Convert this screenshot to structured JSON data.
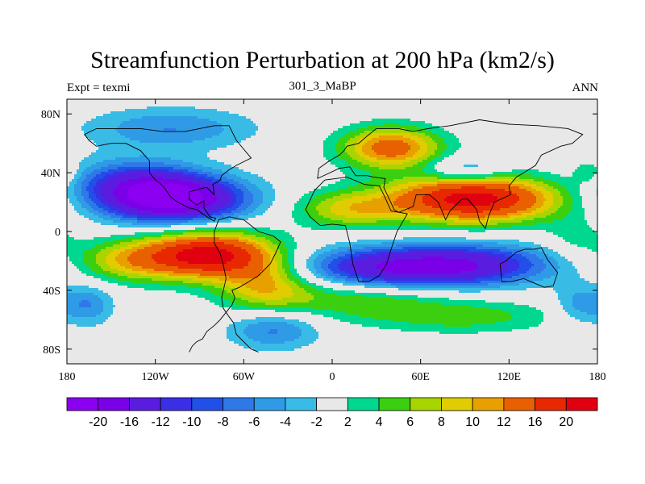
{
  "chart_data": {
    "type": "heatmap",
    "title": "Streamfunction Perturbation at 200 hPa (km2/s)",
    "left_subtitle": "Expt = texmi",
    "center_subtitle": "301_3_MaBP",
    "right_subtitle": "ANN",
    "x_range": [
      -180,
      180
    ],
    "y_range": [
      -90,
      90
    ],
    "x_ticks": [
      {
        "value": -180,
        "label": "180"
      },
      {
        "value": -120,
        "label": "120W"
      },
      {
        "value": -60,
        "label": "60W"
      },
      {
        "value": 0,
        "label": "0"
      },
      {
        "value": 60,
        "label": "60E"
      },
      {
        "value": 120,
        "label": "120E"
      },
      {
        "value": 180,
        "label": "180"
      }
    ],
    "y_ticks": [
      {
        "value": 80,
        "label": "80N"
      },
      {
        "value": 40,
        "label": "40N"
      },
      {
        "value": 0,
        "label": "0"
      },
      {
        "value": -40,
        "label": "40S"
      },
      {
        "value": -80,
        "label": "80S"
      }
    ],
    "contour_levels": [
      -20,
      -16,
      -12,
      -10,
      -8,
      -6,
      -4,
      -2,
      2,
      4,
      6,
      8,
      10,
      12,
      16,
      20
    ],
    "level_labels": [
      "-20",
      "-16",
      "-12",
      "-10",
      "-8",
      "-6",
      "-4",
      "-2",
      "2",
      "4",
      "6",
      "8",
      "10",
      "12",
      "16",
      "20"
    ],
    "colors": [
      "#8b00f0",
      "#7a00e8",
      "#5a1de0",
      "#3b2fe6",
      "#2050e8",
      "#2f78e8",
      "#2f9be6",
      "#38bce6",
      "#e8e8e8",
      "#00d890",
      "#3ad010",
      "#a8d400",
      "#e0cc00",
      "#e8a000",
      "#e86000",
      "#e82800",
      "#e00010"
    ],
    "field_centers": [
      {
        "lon": -108,
        "lat": 22,
        "amp": -22,
        "lon_width": 34,
        "lat_width": 11
      },
      {
        "lon": -135,
        "lat": 34,
        "amp": -9,
        "lon_width": 30,
        "lat_width": 11
      },
      {
        "lon": -110,
        "lat": 70,
        "amp": -6,
        "lon_width": 40,
        "lat_width": 10
      },
      {
        "lon": -85,
        "lat": -16,
        "amp": 22,
        "lon_width": 30,
        "lat_width": 11
      },
      {
        "lon": -45,
        "lat": -35,
        "amp": 9,
        "lon_width": 22,
        "lat_width": 14
      },
      {
        "lon": -140,
        "lat": -20,
        "amp": 8,
        "lon_width": 25,
        "lat_width": 10
      },
      {
        "lon": -165,
        "lat": -50,
        "amp": -6,
        "lon_width": 12,
        "lat_width": 10
      },
      {
        "lon": -40,
        "lat": -66,
        "amp": -7,
        "lon_width": 22,
        "lat_width": 10
      },
      {
        "lon": 40,
        "lat": 57,
        "amp": 14,
        "lon_width": 24,
        "lat_width": 10
      },
      {
        "lon": 95,
        "lat": 22,
        "amp": 22,
        "lon_width": 40,
        "lat_width": 11
      },
      {
        "lon": 10,
        "lat": 15,
        "amp": 8,
        "lon_width": 25,
        "lat_width": 9
      },
      {
        "lon": 90,
        "lat": 42,
        "amp": -6,
        "lon_width": 20,
        "lat_width": 6
      },
      {
        "lon": 40,
        "lat": -25,
        "amp": -15,
        "lon_width": 45,
        "lat_width": 10
      },
      {
        "lon": 100,
        "lat": -22,
        "amp": -10,
        "lon_width": 40,
        "lat_width": 10
      },
      {
        "lon": 15,
        "lat": -45,
        "amp": 6,
        "lon_width": 45,
        "lat_width": 10
      },
      {
        "lon": 90,
        "lat": -58,
        "amp": 5,
        "lon_width": 45,
        "lat_width": 8
      },
      {
        "lon": 168,
        "lat": -50,
        "amp": -5,
        "lon_width": 12,
        "lat_width": 10
      },
      {
        "lon": 165,
        "lat": -5,
        "amp": 3,
        "lon_width": 15,
        "lat_width": 10
      },
      {
        "lon": 175,
        "lat": 40,
        "amp": 5,
        "lon_width": 8,
        "lat_width": 6
      }
    ]
  },
  "continent_outlines": [
    [
      [
        -97,
        -82
      ],
      [
        -95,
        -78
      ],
      [
        -92,
        -75
      ],
      [
        -88,
        -73
      ],
      [
        -85,
        -68
      ],
      [
        -80,
        -64
      ],
      [
        -76,
        -60
      ],
      [
        -72,
        -55
      ],
      [
        -68,
        -50
      ],
      [
        -66,
        -45
      ],
      [
        -68,
        -40
      ],
      [
        -63,
        -38
      ],
      [
        -58,
        -35
      ],
      [
        -50,
        -30
      ],
      [
        -42,
        -22
      ],
      [
        -38,
        -14
      ],
      [
        -35,
        -7
      ],
      [
        -40,
        -3
      ],
      [
        -50,
        0
      ],
      [
        -60,
        8
      ],
      [
        -70,
        10
      ],
      [
        -77,
        8
      ],
      [
        -80,
        0
      ],
      [
        -80,
        -8
      ],
      [
        -76,
        -15
      ],
      [
        -74,
        -22
      ],
      [
        -72,
        -32
      ],
      [
        -75,
        -45
      ],
      [
        -74,
        -52
      ],
      [
        -70,
        -58
      ],
      [
        -67,
        -62
      ],
      [
        -65,
        -70
      ],
      [
        -60,
        -75
      ],
      [
        -55,
        -80
      ],
      [
        -50,
        -82
      ]
    ],
    [
      [
        -18,
        15
      ],
      [
        -12,
        28
      ],
      [
        -5,
        35
      ],
      [
        10,
        37
      ],
      [
        22,
        32
      ],
      [
        32,
        31
      ],
      [
        35,
        25
      ],
      [
        40,
        14
      ],
      [
        51,
        12
      ],
      [
        44,
        0
      ],
      [
        40,
        -12
      ],
      [
        37,
        -22
      ],
      [
        32,
        -30
      ],
      [
        25,
        -34
      ],
      [
        18,
        -34
      ],
      [
        14,
        -22
      ],
      [
        12,
        -8
      ],
      [
        9,
        4
      ],
      [
        0,
        5
      ],
      [
        -8,
        4
      ],
      [
        -15,
        10
      ],
      [
        -18,
        15
      ]
    ],
    [
      [
        -10,
        36
      ],
      [
        -9,
        43
      ],
      [
        -2,
        48
      ],
      [
        5,
        52
      ],
      [
        8,
        55
      ],
      [
        10,
        58
      ],
      [
        18,
        60
      ],
      [
        25,
        66
      ],
      [
        30,
        70
      ],
      [
        45,
        70
      ],
      [
        55,
        68
      ],
      [
        65,
        70
      ],
      [
        80,
        72
      ],
      [
        100,
        76
      ],
      [
        120,
        73
      ],
      [
        140,
        72
      ],
      [
        160,
        70
      ],
      [
        170,
        66
      ],
      [
        163,
        60
      ],
      [
        155,
        58
      ],
      [
        142,
        52
      ],
      [
        138,
        45
      ],
      [
        130,
        40
      ],
      [
        125,
        37
      ],
      [
        120,
        31
      ],
      [
        121,
        25
      ],
      [
        110,
        20
      ],
      [
        106,
        10
      ],
      [
        104,
        2
      ],
      [
        100,
        7
      ],
      [
        98,
        15
      ],
      [
        92,
        22
      ],
      [
        88,
        22
      ],
      [
        80,
        14
      ],
      [
        77,
        8
      ],
      [
        72,
        20
      ],
      [
        66,
        25
      ],
      [
        57,
        25
      ],
      [
        55,
        17
      ],
      [
        45,
        13
      ],
      [
        42,
        15
      ],
      [
        35,
        30
      ],
      [
        36,
        36
      ],
      [
        28,
        37
      ],
      [
        24,
        38
      ],
      [
        16,
        38
      ],
      [
        12,
        44
      ],
      [
        5,
        43
      ],
      [
        -10,
        36
      ]
    ],
    [
      [
        114,
        -22
      ],
      [
        115,
        -34
      ],
      [
        122,
        -34
      ],
      [
        130,
        -32
      ],
      [
        137,
        -35
      ],
      [
        144,
        -38
      ],
      [
        150,
        -37
      ],
      [
        153,
        -28
      ],
      [
        146,
        -19
      ],
      [
        142,
        -11
      ],
      [
        137,
        -12
      ],
      [
        131,
        -12
      ],
      [
        125,
        -14
      ],
      [
        118,
        -20
      ],
      [
        114,
        -22
      ]
    ],
    [
      [
        -168,
        66
      ],
      [
        -160,
        70
      ],
      [
        -145,
        70
      ],
      [
        -130,
        70
      ],
      [
        -115,
        68
      ],
      [
        -100,
        68
      ],
      [
        -90,
        70
      ],
      [
        -80,
        72
      ],
      [
        -70,
        72
      ],
      [
        -65,
        62
      ],
      [
        -60,
        56
      ],
      [
        -55,
        50
      ],
      [
        -65,
        45
      ],
      [
        -70,
        42
      ],
      [
        -75,
        38
      ],
      [
        -76,
        35
      ],
      [
        -81,
        32
      ],
      [
        -80,
        25
      ],
      [
        -82,
        27
      ],
      [
        -85,
        30
      ],
      [
        -90,
        29
      ],
      [
        -97,
        27
      ],
      [
        -97,
        22
      ],
      [
        -92,
        18
      ],
      [
        -87,
        21
      ],
      [
        -87,
        16
      ],
      [
        -83,
        10
      ],
      [
        -79,
        9
      ],
      [
        -80,
        7
      ],
      [
        -85,
        10
      ],
      [
        -92,
        15
      ],
      [
        -97,
        16
      ],
      [
        -105,
        20
      ],
      [
        -110,
        24
      ],
      [
        -114,
        30
      ],
      [
        -117,
        33
      ],
      [
        -120,
        35
      ],
      [
        -124,
        40
      ],
      [
        -124,
        48
      ],
      [
        -130,
        55
      ],
      [
        -140,
        60
      ],
      [
        -150,
        60
      ],
      [
        -160,
        58
      ],
      [
        -165,
        62
      ],
      [
        -168,
        66
      ]
    ]
  ]
}
